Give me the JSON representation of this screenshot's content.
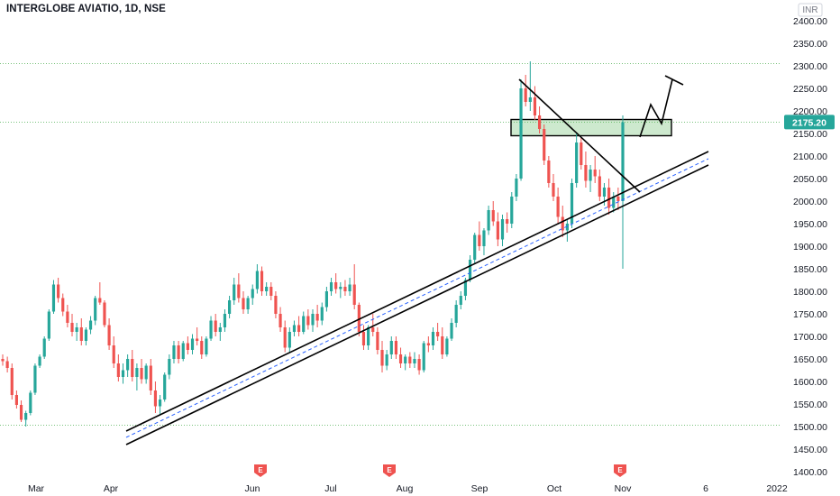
{
  "header": {
    "symbol_title": "INTERGLOBE AVIATIO, 1D, NSE"
  },
  "chart_data": {
    "type": "candlestick",
    "currency": "INR",
    "y_ticks": [
      "2400.00",
      "2350.00",
      "2300.00",
      "2250.00",
      "2200.00",
      "2150.00",
      "2100.00",
      "2050.00",
      "2000.00",
      "1950.00",
      "1900.00",
      "1850.00",
      "1800.00",
      "1750.00",
      "1700.00",
      "1650.00",
      "1600.00",
      "1550.00",
      "1500.00",
      "1450.00",
      "1400.00"
    ],
    "ylim": [
      1400,
      2400
    ],
    "x_ticks": [
      "Mar",
      "Apr",
      "Jun",
      "Jul",
      "Aug",
      "Sep",
      "Oct",
      "Nov",
      "6",
      "2022"
    ],
    "last_price": "2175.20",
    "last_price_color": "#26a69a",
    "up_color": "#26a69a",
    "down_color": "#ef5350",
    "horizontal_levels": [
      2305,
      2175.2,
      1503
    ],
    "earnings_marker": "E",
    "earnings_markers_count": 3,
    "candles_ohlc": [
      [
        1650,
        1660,
        1635,
        1645
      ],
      [
        1645,
        1655,
        1620,
        1630
      ],
      [
        1630,
        1640,
        1560,
        1570
      ],
      [
        1570,
        1580,
        1540,
        1548
      ],
      [
        1548,
        1558,
        1510,
        1515
      ],
      [
        1515,
        1535,
        1500,
        1530
      ],
      [
        1530,
        1580,
        1525,
        1575
      ],
      [
        1575,
        1640,
        1570,
        1635
      ],
      [
        1635,
        1660,
        1630,
        1655
      ],
      [
        1655,
        1700,
        1650,
        1695
      ],
      [
        1695,
        1760,
        1690,
        1755
      ],
      [
        1755,
        1825,
        1750,
        1815
      ],
      [
        1815,
        1830,
        1775,
        1785
      ],
      [
        1785,
        1795,
        1745,
        1755
      ],
      [
        1755,
        1770,
        1720,
        1730
      ],
      [
        1730,
        1750,
        1700,
        1710
      ],
      [
        1710,
        1730,
        1690,
        1720
      ],
      [
        1720,
        1740,
        1680,
        1690
      ],
      [
        1690,
        1720,
        1680,
        1715
      ],
      [
        1715,
        1745,
        1705,
        1735
      ],
      [
        1735,
        1790,
        1725,
        1785
      ],
      [
        1785,
        1820,
        1770,
        1775
      ],
      [
        1775,
        1780,
        1720,
        1725
      ],
      [
        1725,
        1740,
        1670,
        1680
      ],
      [
        1680,
        1700,
        1630,
        1640
      ],
      [
        1640,
        1660,
        1600,
        1610
      ],
      [
        1610,
        1640,
        1595,
        1625
      ],
      [
        1625,
        1660,
        1610,
        1650
      ],
      [
        1650,
        1670,
        1600,
        1610
      ],
      [
        1610,
        1640,
        1580,
        1630
      ],
      [
        1630,
        1650,
        1595,
        1605
      ],
      [
        1605,
        1640,
        1595,
        1635
      ],
      [
        1635,
        1650,
        1570,
        1580
      ],
      [
        1580,
        1600,
        1530,
        1545
      ],
      [
        1545,
        1570,
        1525,
        1560
      ],
      [
        1560,
        1620,
        1555,
        1615
      ],
      [
        1615,
        1660,
        1605,
        1650
      ],
      [
        1650,
        1690,
        1640,
        1680
      ],
      [
        1680,
        1690,
        1640,
        1650
      ],
      [
        1650,
        1690,
        1645,
        1685
      ],
      [
        1685,
        1700,
        1660,
        1670
      ],
      [
        1670,
        1705,
        1660,
        1695
      ],
      [
        1695,
        1720,
        1680,
        1690
      ],
      [
        1690,
        1700,
        1650,
        1660
      ],
      [
        1660,
        1700,
        1655,
        1695
      ],
      [
        1695,
        1745,
        1690,
        1735
      ],
      [
        1735,
        1750,
        1700,
        1710
      ],
      [
        1710,
        1730,
        1690,
        1720
      ],
      [
        1720,
        1760,
        1710,
        1750
      ],
      [
        1750,
        1790,
        1740,
        1780
      ],
      [
        1780,
        1830,
        1770,
        1815
      ],
      [
        1815,
        1840,
        1775,
        1785
      ],
      [
        1785,
        1800,
        1750,
        1760
      ],
      [
        1760,
        1790,
        1750,
        1785
      ],
      [
        1785,
        1815,
        1770,
        1805
      ],
      [
        1805,
        1860,
        1795,
        1845
      ],
      [
        1845,
        1855,
        1790,
        1800
      ],
      [
        1800,
        1820,
        1790,
        1810
      ],
      [
        1810,
        1820,
        1780,
        1790
      ],
      [
        1790,
        1800,
        1740,
        1750
      ],
      [
        1750,
        1765,
        1710,
        1720
      ],
      [
        1720,
        1735,
        1665,
        1675
      ],
      [
        1675,
        1720,
        1665,
        1710
      ],
      [
        1710,
        1735,
        1700,
        1725
      ],
      [
        1725,
        1745,
        1700,
        1710
      ],
      [
        1710,
        1755,
        1705,
        1745
      ],
      [
        1745,
        1760,
        1715,
        1725
      ],
      [
        1725,
        1760,
        1710,
        1750
      ],
      [
        1750,
        1770,
        1720,
        1735
      ],
      [
        1735,
        1775,
        1725,
        1765
      ],
      [
        1765,
        1810,
        1755,
        1800
      ],
      [
        1800,
        1830,
        1790,
        1820
      ],
      [
        1820,
        1840,
        1795,
        1805
      ],
      [
        1805,
        1820,
        1785,
        1810
      ],
      [
        1810,
        1825,
        1790,
        1800
      ],
      [
        1800,
        1830,
        1790,
        1815
      ],
      [
        1815,
        1860,
        1760,
        1770
      ],
      [
        1770,
        1775,
        1700,
        1710
      ],
      [
        1710,
        1725,
        1670,
        1680
      ],
      [
        1680,
        1725,
        1670,
        1720
      ],
      [
        1720,
        1750,
        1700,
        1710
      ],
      [
        1710,
        1720,
        1660,
        1670
      ],
      [
        1670,
        1690,
        1620,
        1635
      ],
      [
        1635,
        1670,
        1625,
        1660
      ],
      [
        1660,
        1700,
        1650,
        1690
      ],
      [
        1690,
        1700,
        1650,
        1660
      ],
      [
        1660,
        1675,
        1630,
        1640
      ],
      [
        1640,
        1660,
        1625,
        1655
      ],
      [
        1655,
        1665,
        1630,
        1640
      ],
      [
        1640,
        1665,
        1630,
        1650
      ],
      [
        1650,
        1660,
        1615,
        1625
      ],
      [
        1625,
        1690,
        1620,
        1685
      ],
      [
        1685,
        1700,
        1665,
        1680
      ],
      [
        1680,
        1720,
        1670,
        1710
      ],
      [
        1710,
        1730,
        1690,
        1700
      ],
      [
        1700,
        1720,
        1650,
        1660
      ],
      [
        1660,
        1700,
        1655,
        1695
      ],
      [
        1695,
        1740,
        1690,
        1730
      ],
      [
        1730,
        1780,
        1720,
        1770
      ],
      [
        1770,
        1800,
        1760,
        1790
      ],
      [
        1790,
        1830,
        1780,
        1825
      ],
      [
        1825,
        1880,
        1820,
        1870
      ],
      [
        1870,
        1930,
        1860,
        1925
      ],
      [
        1925,
        1955,
        1890,
        1900
      ],
      [
        1900,
        1940,
        1880,
        1935
      ],
      [
        1935,
        1990,
        1925,
        1980
      ],
      [
        1980,
        2000,
        1945,
        1955
      ],
      [
        1955,
        1975,
        1900,
        1915
      ],
      [
        1915,
        1970,
        1900,
        1960
      ],
      [
        1960,
        1975,
        1930,
        1950
      ],
      [
        1950,
        2020,
        1940,
        2010
      ],
      [
        2010,
        2060,
        2000,
        2050
      ],
      [
        2050,
        2270,
        2045,
        2250
      ],
      [
        2250,
        2280,
        2210,
        2220
      ],
      [
        2220,
        2310,
        2200,
        2230
      ],
      [
        2230,
        2255,
        2180,
        2190
      ],
      [
        2190,
        2210,
        2150,
        2160
      ],
      [
        2160,
        2170,
        2080,
        2090
      ],
      [
        2090,
        2100,
        2030,
        2040
      ],
      [
        2040,
        2060,
        2000,
        2010
      ],
      [
        2010,
        2030,
        1950,
        1965
      ],
      [
        1965,
        1990,
        1920,
        1935
      ],
      [
        1935,
        1960,
        1910,
        1950
      ],
      [
        1950,
        2050,
        1940,
        2040
      ],
      [
        2040,
        2150,
        2030,
        2130
      ],
      [
        2130,
        2140,
        2070,
        2080
      ],
      [
        2080,
        2110,
        2030,
        2045
      ],
      [
        2045,
        2080,
        2020,
        2070
      ],
      [
        2070,
        2100,
        2040,
        2055
      ],
      [
        2055,
        2070,
        2000,
        2010
      ],
      [
        2010,
        2040,
        1990,
        2030
      ],
      [
        2030,
        2050,
        1970,
        1985
      ],
      [
        1985,
        2020,
        1975,
        2010
      ],
      [
        2010,
        2030,
        1980,
        2000
      ],
      [
        2000,
        2190,
        1850,
        2175
      ]
    ]
  }
}
